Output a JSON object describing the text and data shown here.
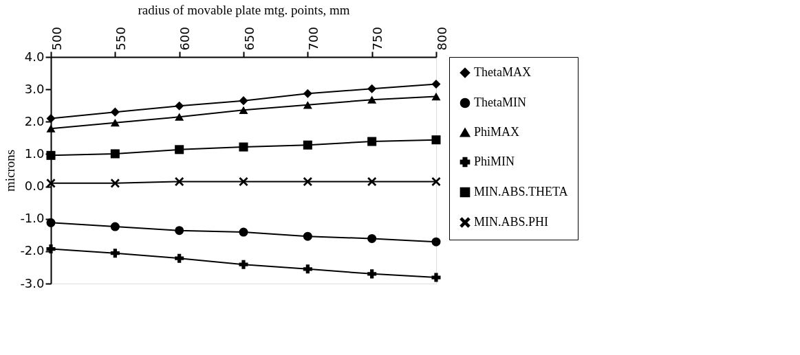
{
  "chart_data": {
    "type": "line",
    "xlabel": "radius of movable plate mtg. points, mm",
    "ylabel": "microns",
    "categories": [
      "500",
      "550",
      "600",
      "650",
      "700",
      "750",
      "800"
    ],
    "series": [
      {
        "name": "ThetaMAX",
        "color": "#000000",
        "marker": "diamond",
        "values": [
          2.1,
          2.3,
          2.49,
          2.65,
          2.87,
          3.02,
          3.16
        ]
      },
      {
        "name": "ThetaMIN",
        "color": "#000000",
        "marker": "circle",
        "values": [
          -1.12,
          -1.24,
          -1.36,
          -1.41,
          -1.54,
          -1.61,
          -1.71
        ]
      },
      {
        "name": "PhiMAX",
        "color": "#000000",
        "marker": "triangle",
        "values": [
          1.79,
          1.97,
          2.15,
          2.36,
          2.52,
          2.68,
          2.78
        ]
      },
      {
        "name": "PhiMIN",
        "color": "#000000",
        "marker": "cross",
        "values": [
          -1.93,
          -2.06,
          -2.22,
          -2.41,
          -2.55,
          -2.7,
          -2.81
        ]
      },
      {
        "name": "MIN.ABS.THETA",
        "color": "#000000",
        "marker": "square",
        "values": [
          0.96,
          1.01,
          1.14,
          1.22,
          1.28,
          1.39,
          1.44
        ]
      },
      {
        "name": "MIN.ABS.PHI",
        "color": "#000000",
        "marker": "x",
        "values": [
          0.1,
          0.1,
          0.15,
          0.15,
          0.15,
          0.15,
          0.15
        ]
      }
    ],
    "ylim": [
      -3,
      4
    ],
    "yticks": [
      {
        "value": -3,
        "label": "-3.0"
      },
      {
        "value": -2,
        "label": "-2.0"
      },
      {
        "value": -1,
        "label": "-1.0"
      },
      {
        "value": 0,
        "label": "0.0"
      },
      {
        "value": 1,
        "label": "1.0"
      },
      {
        "value": 2,
        "label": "2.0"
      },
      {
        "value": 3,
        "label": "3.0"
      },
      {
        "value": 4,
        "label": "4.0"
      }
    ],
    "grid": false,
    "legend": "right"
  }
}
